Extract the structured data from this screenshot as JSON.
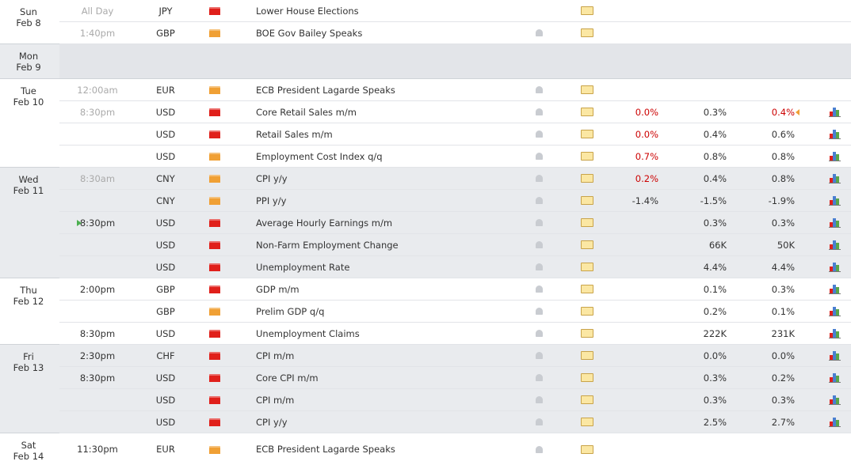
{
  "days": [
    {
      "day": "Sun",
      "date": "Feb 8",
      "rows": [
        {
          "time": "All Day",
          "time_color": "#aaaaaa",
          "currency": "JPY",
          "impact": "#e0201b",
          "event": "Lower House Elections"
        },
        {
          "time": "1:40pm",
          "time_color": "#aaaaaa",
          "currency": "GBP",
          "impact": "#f0a035",
          "event": "BOE Gov Bailey Speaks"
        }
      ]
    },
    {
      "day": "Mon",
      "date": "Feb 9",
      "rows": []
    },
    {
      "day": "Tue",
      "date": "Feb 10",
      "rows": [
        {
          "time": "12:00am",
          "time_color": "#aaaaaa",
          "currency": "EUR",
          "impact": "#f0a035",
          "event": "ECB President Lagarde Speaks"
        },
        {
          "time": "8:30pm",
          "time_color": "#aaaaaa",
          "currency": "USD",
          "impact": "#e0201b",
          "event": "Core Retail Sales m/m",
          "actual": "0.0%",
          "actual_color": "#cc0000",
          "forecast": "0.3%",
          "previous": "0.4%",
          "previous_color": "#cc0000",
          "previous_marker_color": "#f0a035"
        },
        {
          "time": null,
          "currency": "USD",
          "impact": "#e0201b",
          "event": "Retail Sales m/m",
          "actual": "0.0%",
          "actual_color": "#cc0000",
          "forecast": "0.4%",
          "previous": "0.6%"
        },
        {
          "time": null,
          "currency": "USD",
          "impact": "#f0a035",
          "event": "Employment Cost Index q/q",
          "actual": "0.7%",
          "actual_color": "#cc0000",
          "forecast": "0.8%",
          "previous": "0.8%"
        }
      ]
    },
    {
      "day": "Wed",
      "date": "Feb 11",
      "rows": [
        {
          "time": "8:30am",
          "time_color": "#aaaaaa",
          "currency": "CNY",
          "impact": "#f0a035",
          "event": "CPI y/y",
          "actual": "0.2%",
          "actual_color": "#cc0000",
          "forecast": "0.4%",
          "previous": "0.8%"
        },
        {
          "time": null,
          "currency": "CNY",
          "impact": "#f0a035",
          "event": "PPI y/y",
          "actual": "-1.4%",
          "actual_color": "#333333",
          "forecast": "-1.5%",
          "previous": "-1.9%"
        },
        {
          "time": "8:30pm",
          "time_marker_color": "#4caf50",
          "currency": "USD",
          "impact": "#e0201b",
          "event": "Average Hourly Earnings m/m",
          "forecast": "0.3%",
          "previous": "0.3%"
        },
        {
          "time": null,
          "currency": "USD",
          "impact": "#e0201b",
          "event": "Non-Farm Employment Change",
          "forecast": "66K",
          "previous": "50K"
        },
        {
          "time": null,
          "currency": "USD",
          "impact": "#e0201b",
          "event": "Unemployment Rate",
          "forecast": "4.4%",
          "previous": "4.4%"
        }
      ]
    },
    {
      "day": "Thu",
      "date": "Feb 12",
      "rows": [
        {
          "time": "2:00pm",
          "currency": "GBP",
          "impact": "#e0201b",
          "event": "GDP m/m",
          "forecast": "0.1%",
          "previous": "0.3%"
        },
        {
          "time": null,
          "currency": "GBP",
          "impact": "#f0a035",
          "event": "Prelim GDP q/q",
          "forecast": "0.2%",
          "previous": "0.1%"
        },
        {
          "time": "8:30pm",
          "currency": "USD",
          "impact": "#e0201b",
          "event": "Unemployment Claims",
          "forecast": "222K",
          "previous": "231K"
        }
      ]
    },
    {
      "day": "Fri",
      "date": "Feb 13",
      "rows": [
        {
          "time": "2:30pm",
          "currency": "CHF",
          "impact": "#e0201b",
          "event": "CPI m/m",
          "forecast": "0.0%",
          "previous": "0.0%"
        },
        {
          "time": "8:30pm",
          "currency": "USD",
          "impact": "#e0201b",
          "event": "Core CPI m/m",
          "forecast": "0.3%",
          "previous": "0.2%"
        },
        {
          "time": null,
          "currency": "USD",
          "impact": "#e0201b",
          "event": "CPI m/m",
          "forecast": "0.3%",
          "previous": "0.3%"
        },
        {
          "time": null,
          "currency": "USD",
          "impact": "#e0201b",
          "event": "CPI y/y",
          "forecast": "2.5%",
          "previous": "2.7%"
        }
      ]
    },
    {
      "day": "Sat",
      "date": "Feb 14",
      "rows": [
        {
          "time": "11:30pm",
          "currency": "EUR",
          "impact": "#f0a035",
          "event": "ECB President Lagarde Speaks"
        }
      ]
    }
  ]
}
